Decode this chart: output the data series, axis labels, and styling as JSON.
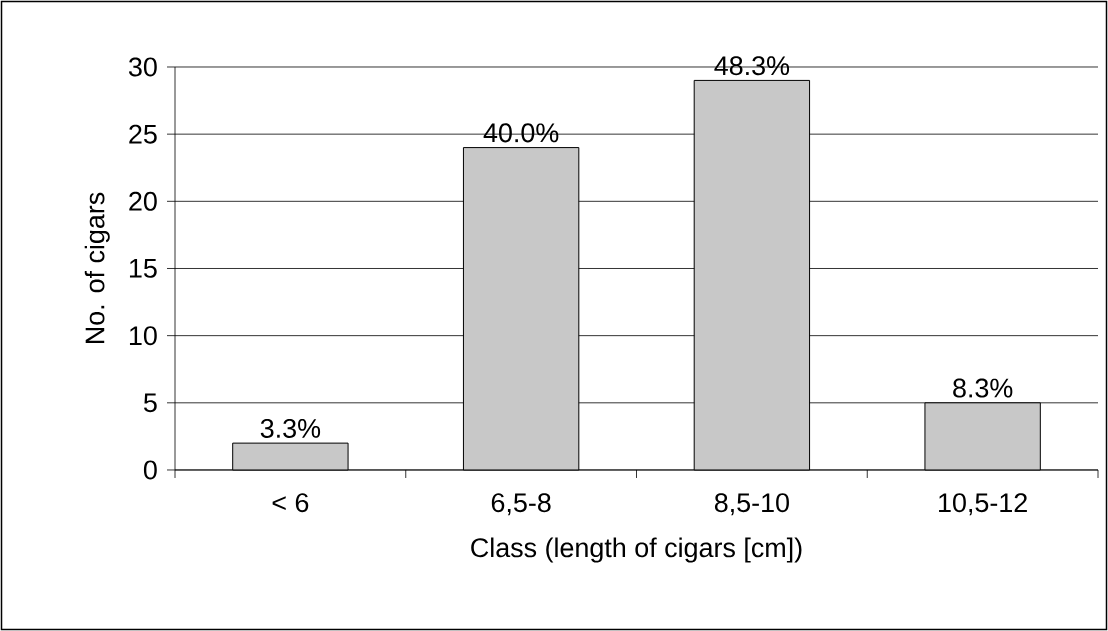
{
  "chart_data": {
    "type": "bar",
    "xlabel": "Class (length of cigars [cm])",
    "ylabel": "No. of cigars",
    "categories": [
      "< 6",
      "6,5-8",
      "8,5-10",
      "10,5-12"
    ],
    "values": [
      2,
      24,
      29,
      5
    ],
    "annotations": [
      {
        "text": "3.3%",
        "x": "< 6",
        "y": 2
      },
      {
        "text": "40.0%",
        "x": "6,5-8",
        "y": 24
      },
      {
        "text": "48.3%",
        "x": "8,5-10",
        "y": 29
      },
      {
        "text": "8.3%",
        "x": "10,5-12",
        "y": 5
      }
    ],
    "color": "#c8c8c8",
    "ylim": [
      0,
      30
    ],
    "yticks": [
      0,
      5,
      10,
      15,
      20,
      25,
      30
    ],
    "grid": "y"
  }
}
